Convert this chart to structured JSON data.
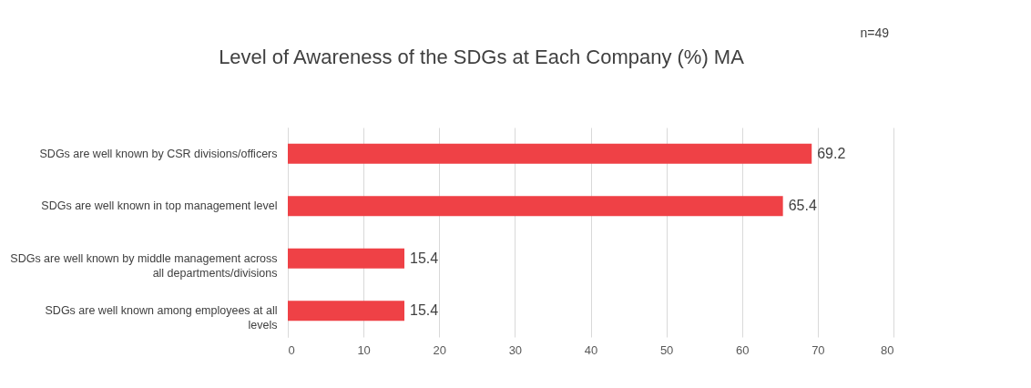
{
  "chart_data": {
    "type": "bar",
    "orientation": "horizontal",
    "title": "Level of Awareness of the SDGs at Each Company (%) MA",
    "annotations": [
      "n=49"
    ],
    "categories": [
      "SDGs are well known by CSR divisions/officers",
      "SDGs are well known in top management level",
      "SDGs are well known by middle management across all departments/divisions",
      "SDGs are well known among employees at all levels"
    ],
    "values": [
      69.2,
      65.4,
      15.4,
      15.4
    ],
    "color": "#ef4146",
    "xlim": [
      0,
      80
    ],
    "xticks": [
      0,
      10,
      20,
      30,
      40,
      50,
      60,
      70,
      80
    ],
    "grid": "x",
    "data_labels": true
  }
}
